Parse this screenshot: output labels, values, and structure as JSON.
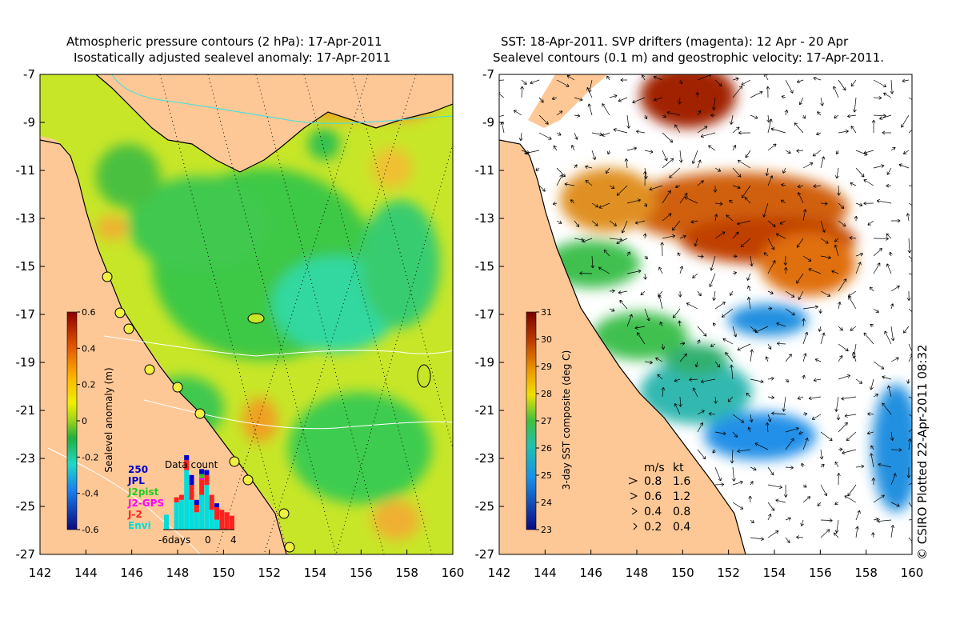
{
  "left_panel": {
    "title_line1": "Atmospheric pressure contours (2 hPa): 17-Apr-2011",
    "title_line2": "Isostatically adjusted sealevel anomaly: 17-Apr-2011",
    "y_ticks": [
      "-7",
      "-9",
      "-11",
      "-13",
      "-15",
      "-17",
      "-19",
      "-21",
      "-23",
      "-25",
      "-27"
    ],
    "x_ticks": [
      "142",
      "144",
      "146",
      "148",
      "150",
      "152",
      "154",
      "156",
      "158",
      "160"
    ],
    "colorbar": {
      "label": "Sealevel anomaly (m)",
      "ticks": [
        "0.6",
        "0.4",
        "0.2",
        "0",
        "-0.2",
        "-0.4",
        "-0.6"
      ],
      "range": [
        -0.6,
        0.6
      ]
    },
    "data_count": {
      "title": "Data count",
      "max_label": "250",
      "x_labels": [
        "-6days",
        "0",
        "4"
      ],
      "legend": [
        {
          "name": "JPL",
          "color": "#0000cc"
        },
        {
          "name": "J2pist",
          "color": "#22cc22"
        },
        {
          "name": "J2-GPS",
          "color": "#ff00ff"
        },
        {
          "name": "J-2",
          "color": "#ff2020"
        },
        {
          "name": "Envi",
          "color": "#00dddd"
        }
      ]
    }
  },
  "right_panel": {
    "title_line1": "SST: 18-Apr-2011. SVP drifters (magenta): 12 Apr - 20 Apr",
    "title_line2": "Sealevel contours (0.1 m) and geostrophic velocity: 17-Apr-2011.",
    "y_ticks": [
      "-7",
      "-9",
      "-11",
      "-13",
      "-15",
      "-17",
      "-19",
      "-21",
      "-23",
      "-25",
      "-27"
    ],
    "x_ticks": [
      "142",
      "144",
      "146",
      "148",
      "150",
      "152",
      "154",
      "156",
      "158",
      "160"
    ],
    "colorbar": {
      "label": "3-day SST composite (deg C)",
      "ticks": [
        "31",
        "30",
        "29",
        "28",
        "27",
        "26",
        "25",
        "24",
        "23"
      ],
      "range": [
        23,
        31
      ]
    },
    "velocity_legend": {
      "header_ms": "m/s",
      "header_kt": "kt",
      "rows": [
        {
          "ms": "0.8",
          "kt": "1.6"
        },
        {
          "ms": "0.6",
          "kt": "1.2"
        },
        {
          "ms": "0.4",
          "kt": "0.8"
        },
        {
          "ms": "0.2",
          "kt": "0.4"
        }
      ]
    }
  },
  "copyright": "© CSIRO Plotted 22-Apr-2011 08:32",
  "colors": {
    "land": "#fdc896",
    "sla_high": "#ff8c00",
    "sla_mid": "#c8e628",
    "sla_low": "#22c43c",
    "sst_warm": "#c85a00",
    "sst_cool": "#20a0d8"
  }
}
